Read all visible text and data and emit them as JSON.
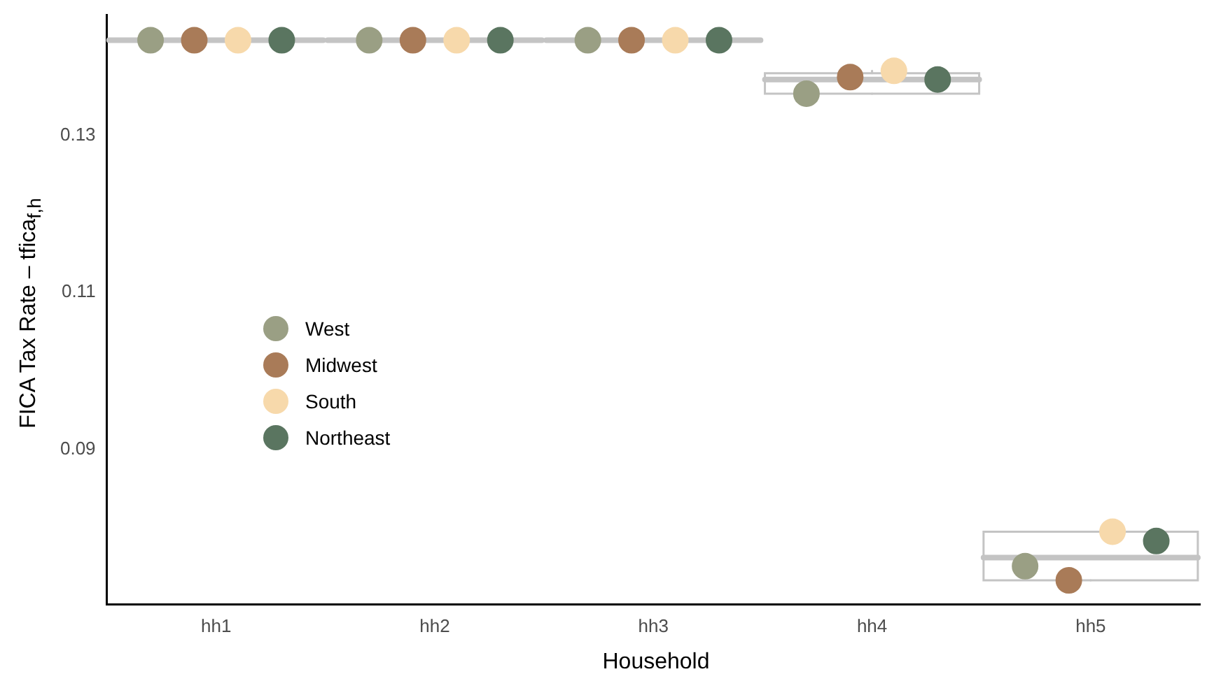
{
  "chart_data": {
    "type": "box",
    "xlabel": "Household",
    "ylabel": "FICA Tax Rate – tfica$_{f,h}$",
    "categories": [
      "hh1",
      "hh2",
      "hh3",
      "hh4",
      "hh5"
    ],
    "boxes": [
      {
        "low": 0.1421,
        "q1": 0.1421,
        "median": 0.1421,
        "q3": 0.1421,
        "high": 0.1421
      },
      {
        "low": 0.1421,
        "q1": 0.1421,
        "median": 0.1421,
        "q3": 0.1421,
        "high": 0.1421
      },
      {
        "low": 0.1421,
        "q1": 0.1421,
        "median": 0.1421,
        "q3": 0.1421,
        "high": 0.1421
      },
      {
        "low": 0.1353,
        "q1": 0.1353,
        "median": 0.1371,
        "q3": 0.1379,
        "high": 0.1382
      },
      {
        "low": 0.0733,
        "q1": 0.0733,
        "median": 0.0762,
        "q3": 0.0795,
        "high": 0.0795
      }
    ],
    "series": [
      {
        "type": "scatter",
        "name": "West",
        "color": "#9a9f84",
        "x": [
          "hh1",
          "hh2",
          "hh3",
          "hh4",
          "hh5"
        ],
        "values": [
          0.1421,
          0.1421,
          0.1421,
          0.1353,
          0.0751
        ]
      },
      {
        "type": "scatter",
        "name": "Midwest",
        "color": "#a97b58",
        "x": [
          "hh1",
          "hh2",
          "hh3",
          "hh4",
          "hh5"
        ],
        "values": [
          0.1421,
          0.1421,
          0.1421,
          0.1374,
          0.0733
        ]
      },
      {
        "type": "scatter",
        "name": "South",
        "color": "#f7d9ab",
        "x": [
          "hh1",
          "hh2",
          "hh3",
          "hh4",
          "hh5"
        ],
        "values": [
          0.1421,
          0.1421,
          0.1421,
          0.1382,
          0.0795
        ]
      },
      {
        "type": "scatter",
        "name": "Northeast",
        "color": "#5a7560",
        "x": [
          "hh1",
          "hh2",
          "hh3",
          "hh4",
          "hh5"
        ],
        "values": [
          0.1421,
          0.1421,
          0.1421,
          0.1371,
          0.0783
        ]
      }
    ],
    "ylim": [
      0.0702,
      0.1453
    ],
    "yticks": [
      0.09,
      0.11,
      0.13
    ],
    "grid": false,
    "legend": "left",
    "marker": "circle"
  }
}
